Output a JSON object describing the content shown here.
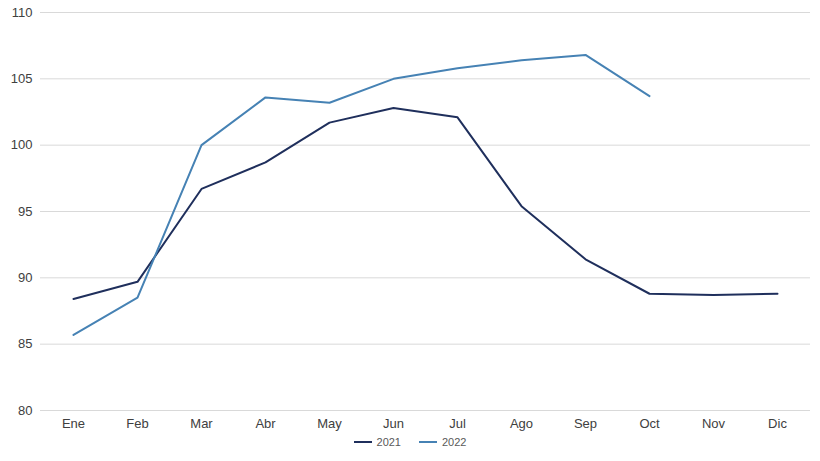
{
  "chart_data": {
    "type": "line",
    "categories": [
      "Ene",
      "Feb",
      "Mar",
      "Abr",
      "May",
      "Jun",
      "Jul",
      "Ago",
      "Sep",
      "Oct",
      "Nov",
      "Dic"
    ],
    "series": [
      {
        "name": "2021",
        "color": "#1f2f5c",
        "values": [
          88.4,
          89.7,
          96.7,
          98.7,
          101.7,
          102.8,
          102.1,
          95.4,
          91.4,
          88.8,
          88.7,
          88.8
        ]
      },
      {
        "name": "2022",
        "color": "#4682b4",
        "values": [
          85.7,
          88.5,
          100.0,
          103.6,
          103.2,
          105.0,
          105.8,
          106.4,
          106.8,
          103.7,
          null,
          null
        ]
      }
    ],
    "ylim": [
      80,
      110
    ],
    "yticks": [
      80,
      85,
      90,
      95,
      100,
      105,
      110
    ],
    "grid": true,
    "legend": "bottom"
  }
}
